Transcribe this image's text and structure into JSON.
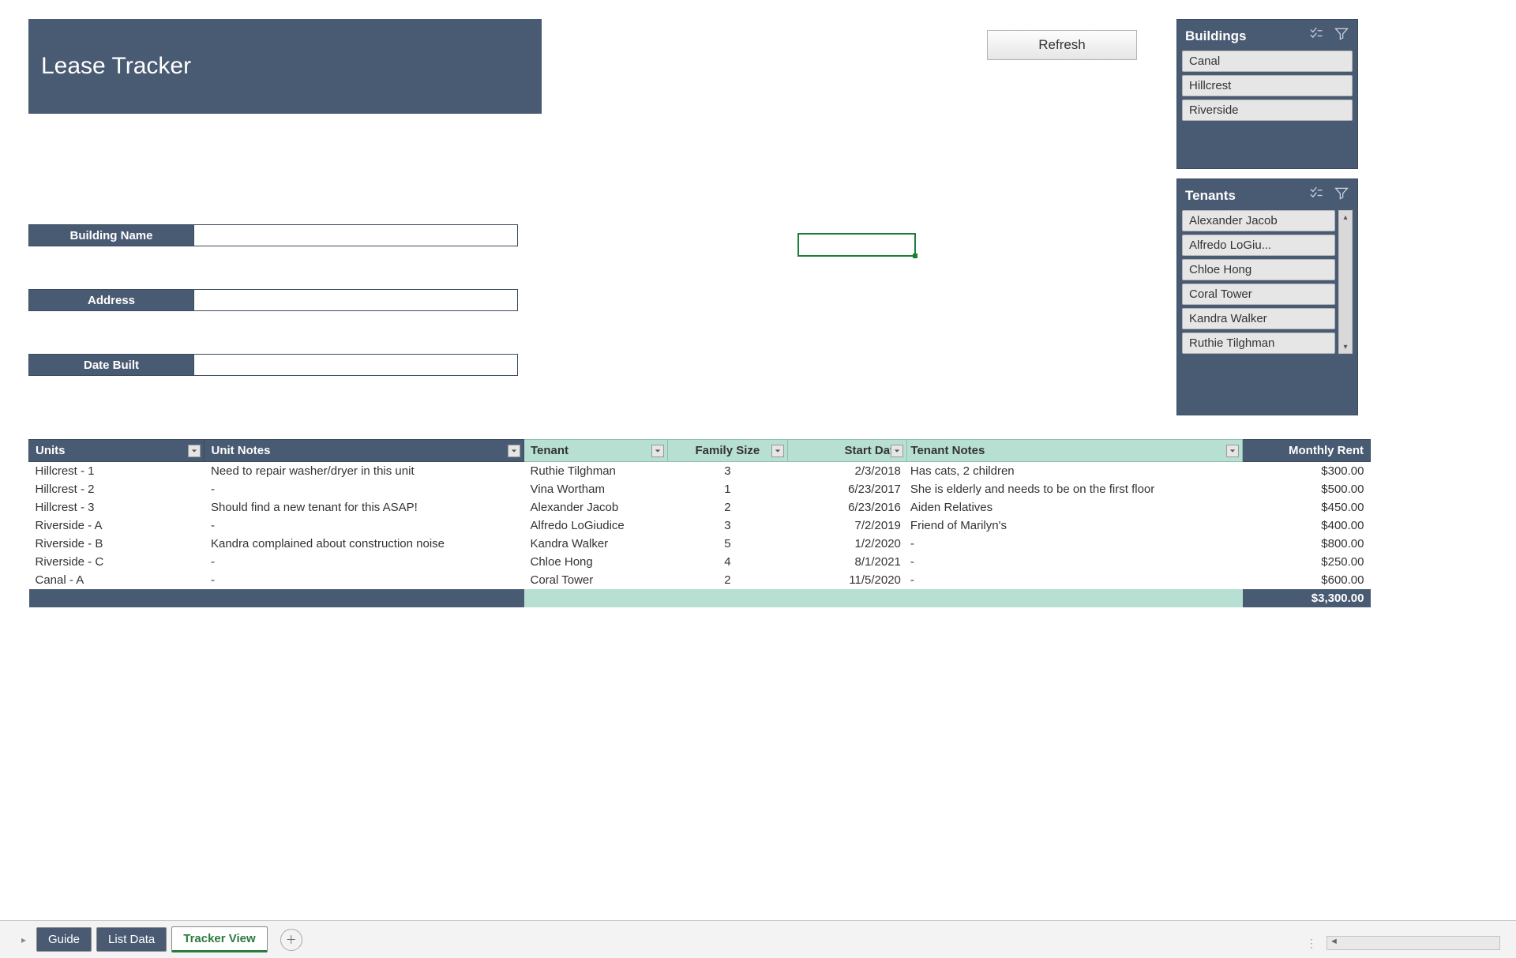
{
  "title": "Lease Tracker",
  "refresh_label": "Refresh",
  "fields": {
    "building_name_label": "Building Name",
    "address_label": "Address",
    "date_built_label": "Date Built"
  },
  "slicers": {
    "buildings": {
      "title": "Buildings",
      "items": [
        "Canal",
        "Hillcrest",
        "Riverside"
      ]
    },
    "tenants": {
      "title": "Tenants",
      "items": [
        "Alexander Jacob",
        "Alfredo LoGiu...",
        "Chloe Hong",
        "Coral Tower",
        "Kandra Walker",
        "Ruthie Tilghman"
      ]
    }
  },
  "table": {
    "headers": {
      "units": "Units",
      "unit_notes": "Unit Notes",
      "tenant": "Tenant",
      "family_size": "Family Size",
      "start_date": "Start Date",
      "tenant_notes": "Tenant Notes",
      "monthly_rent": "Monthly Rent"
    },
    "rows": [
      {
        "units": "Hillcrest - 1",
        "unit_notes": "Need to repair washer/dryer in this unit",
        "tenant": "Ruthie Tilghman",
        "family_size": "3",
        "start_date": "2/3/2018",
        "tenant_notes": "Has cats, 2 children",
        "rent": "$300.00"
      },
      {
        "units": "Hillcrest - 2",
        "unit_notes": "-",
        "tenant": "Vina Wortham",
        "family_size": "1",
        "start_date": "6/23/2017",
        "tenant_notes": "She is elderly and needs to be on the first floor",
        "rent": "$500.00"
      },
      {
        "units": "Hillcrest - 3",
        "unit_notes": "Should find a new tenant for this ASAP!",
        "tenant": "Alexander Jacob",
        "family_size": "2",
        "start_date": "6/23/2016",
        "tenant_notes": "Aiden Relatives",
        "rent": "$450.00"
      },
      {
        "units": "Riverside - A",
        "unit_notes": "-",
        "tenant": "Alfredo LoGiudice",
        "family_size": "3",
        "start_date": "7/2/2019",
        "tenant_notes": "Friend of Marilyn's",
        "rent": "$400.00"
      },
      {
        "units": "Riverside - B",
        "unit_notes": "Kandra complained about construction noise",
        "tenant": "Kandra Walker",
        "family_size": "5",
        "start_date": "1/2/2020",
        "tenant_notes": "-",
        "rent": "$800.00"
      },
      {
        "units": "Riverside - C",
        "unit_notes": "-",
        "tenant": "Chloe Hong",
        "family_size": "4",
        "start_date": "8/1/2021",
        "tenant_notes": "-",
        "rent": "$250.00"
      },
      {
        "units": "Canal - A",
        "unit_notes": "-",
        "tenant": "Coral Tower",
        "family_size": "2",
        "start_date": "11/5/2020",
        "tenant_notes": "-",
        "rent": "$600.00"
      }
    ],
    "total_rent": "$3,300.00"
  },
  "tabs": {
    "guide": "Guide",
    "list_data": "List Data",
    "tracker_view": "Tracker View"
  },
  "colors": {
    "header_dark": "#495a73",
    "header_light": "#b8e0d2",
    "accent_green": "#2b7a3f"
  }
}
